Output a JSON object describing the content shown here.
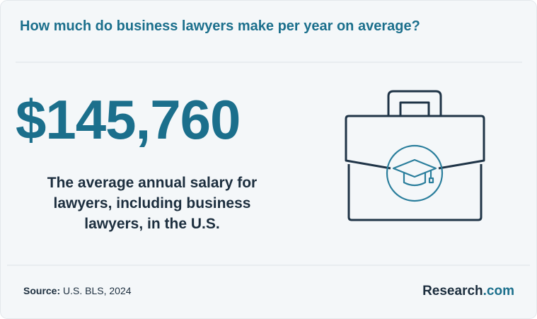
{
  "header": {
    "title": "How much do business lawyers make per year on average?"
  },
  "stat": {
    "value": "$145,760",
    "description": [
      "The average annual salary for",
      "lawyers, including business",
      "lawyers, in the U.S."
    ]
  },
  "footer": {
    "source_label": "Source:",
    "source": "U.S. BLS, 2024",
    "brand_name": "Research",
    "brand_suffix": ".com"
  }
}
